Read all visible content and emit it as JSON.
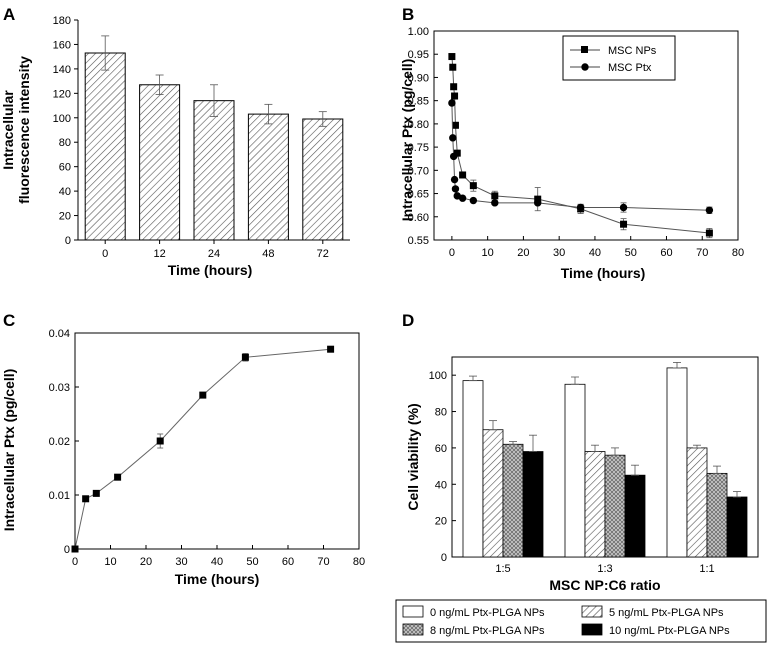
{
  "chart_data": [
    {
      "panel": "A",
      "type": "bar",
      "categories": [
        "0",
        "12",
        "24",
        "48",
        "72"
      ],
      "values": [
        153,
        127,
        114,
        103,
        99
      ],
      "errors": [
        14,
        8,
        13,
        8,
        6
      ],
      "xlabel": "Time (hours)",
      "ylabel": [
        "Intracellular",
        "fluorescence intensity"
      ],
      "ylim": [
        0,
        180
      ],
      "yticks": [
        0,
        20,
        40,
        60,
        80,
        100,
        120,
        140,
        160,
        180
      ],
      "bar_fill": "hatched"
    },
    {
      "panel": "B",
      "type": "line",
      "xlabel": "Time (hours)",
      "ylabel": "Intracellular Ptx (pg/cell)",
      "xlim": [
        -5,
        80
      ],
      "ylim": [
        0.55,
        1.0
      ],
      "xticks": [
        0,
        10,
        20,
        30,
        40,
        50,
        60,
        70,
        80
      ],
      "yticks": [
        0.55,
        0.6,
        0.65,
        0.7,
        0.75,
        0.8,
        0.85,
        0.9,
        0.95,
        1.0
      ],
      "legend_position": "top-right",
      "series": [
        {
          "name": "MSC NPs",
          "marker": "square",
          "x": [
            0,
            0.25,
            0.5,
            0.75,
            1,
            1.5,
            3,
            6,
            12,
            24,
            36,
            48,
            72
          ],
          "y": [
            0.945,
            0.922,
            0.88,
            0.86,
            0.797,
            0.737,
            0.69,
            0.667,
            0.645,
            0.638,
            0.617,
            0.584,
            0.565
          ],
          "errors": [
            0,
            0,
            0,
            0,
            0,
            0,
            0,
            0.012,
            0.01,
            0.025,
            0.01,
            0.012,
            0.01
          ]
        },
        {
          "name": "MSC Ptx",
          "marker": "circle",
          "x": [
            0,
            0.25,
            0.5,
            0.75,
            1,
            1.5,
            3,
            6,
            12,
            24,
            36,
            48,
            72
          ],
          "y": [
            0.845,
            0.77,
            0.73,
            0.68,
            0.66,
            0.645,
            0.64,
            0.635,
            0.63,
            0.63,
            0.62,
            0.62,
            0.614
          ],
          "errors": [
            0,
            0,
            0,
            0,
            0,
            0,
            0,
            0,
            0,
            0,
            0.006,
            0.01,
            0.007
          ]
        }
      ]
    },
    {
      "panel": "C",
      "type": "line",
      "xlabel": "Time (hours)",
      "ylabel": "Intracellular Ptx (pg/cell)",
      "xlim": [
        0,
        80
      ],
      "ylim": [
        0,
        0.04
      ],
      "xticks": [
        0,
        10,
        20,
        30,
        40,
        50,
        60,
        70,
        80
      ],
      "yticks": [
        0,
        0.01,
        0.02,
        0.03,
        0.04
      ],
      "ytick_labels": [
        "0",
        "0.01",
        "0.02",
        "0.03",
        "0.04"
      ],
      "series": [
        {
          "name": "Intracellular Ptx",
          "marker": "square",
          "x": [
            0,
            3,
            6,
            12,
            24,
            36,
            48,
            72
          ],
          "y": [
            0,
            0.0093,
            0.0103,
            0.0133,
            0.02,
            0.0285,
            0.0355,
            0.037
          ],
          "errors": [
            0,
            0,
            0,
            0,
            0.0013,
            0,
            0.0007,
            0
          ]
        }
      ]
    },
    {
      "panel": "D",
      "type": "bar",
      "categories": [
        "1:5",
        "1:3",
        "1:1"
      ],
      "xlabel": "MSC NP:C6 ratio",
      "ylabel": "Cell viability (%)",
      "ylim": [
        0,
        110
      ],
      "yticks": [
        0,
        20,
        40,
        60,
        80,
        100
      ],
      "legend_position": "bottom",
      "series": [
        {
          "name": "0 ng/mL Ptx-PLGA NPs",
          "fill": "white",
          "values": [
            97,
            95,
            104
          ],
          "errors": [
            2.5,
            4,
            3
          ]
        },
        {
          "name": "5 ng/mL Ptx-PLGA NPs",
          "fill": "hatched",
          "values": [
            70,
            58,
            60
          ],
          "errors": [
            5,
            3.5,
            1.5
          ]
        },
        {
          "name": "8 ng/mL Ptx-PLGA NPs",
          "fill": "crosshatched",
          "values": [
            62,
            56,
            46
          ],
          "errors": [
            1.5,
            4,
            4
          ]
        },
        {
          "name": "10 ng/mL Ptx-PLGA NPs",
          "fill": "black",
          "values": [
            58,
            45,
            33
          ],
          "errors": [
            9,
            5.5,
            3
          ]
        }
      ]
    }
  ]
}
